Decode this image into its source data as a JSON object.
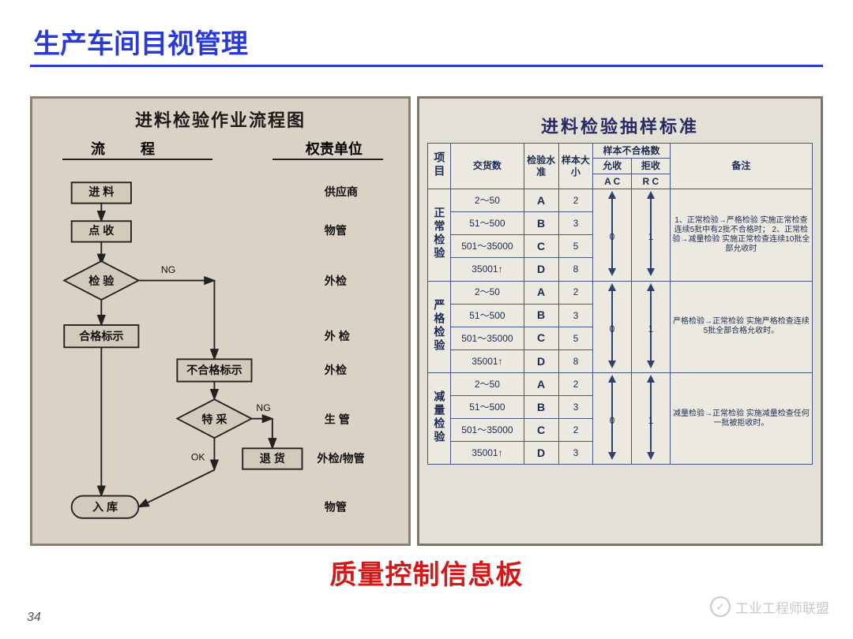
{
  "slide": {
    "title": "生产车间目视管理",
    "caption": "质量控制信息板",
    "page_number": "34",
    "watermark": "工业工程师联盟",
    "colors": {
      "title": "#2a3ad4",
      "caption": "#d21919",
      "tbl_border": "#4a5482",
      "left_bg": "#d9d2c5",
      "right_bg": "#e3e0d7"
    }
  },
  "flowchart": {
    "title": "进料检验作业流程图",
    "col1": "流  程",
    "col2": "权责单位",
    "nodes": {
      "n1": "进 料",
      "n2": "点 收",
      "n3": "检 验",
      "n4": "合格标示",
      "n5": "不合格标示",
      "n6": "特 采",
      "n7": "退 货",
      "n8": "入 库"
    },
    "edge_labels": {
      "ng1": "NG",
      "ng2": "NG",
      "ok": "OK"
    },
    "resp": [
      "供应商",
      "物管",
      "外检",
      "外 检",
      "外检",
      "生 管",
      "外检/物管",
      "物管"
    ]
  },
  "sampling": {
    "title": "进料检验抽样标准",
    "head": {
      "proj": "项目",
      "lot": "交货数",
      "aql": "检验水准",
      "size": "样本大小",
      "defects": "样本不合格数",
      "ac": "允收",
      "re": "拒收",
      "ac2": "A C",
      "re2": "R C",
      "remark": "备注"
    },
    "groups": [
      {
        "name": "正常检验",
        "rows": [
          {
            "lot": "2～50",
            "aql": "A",
            "size": "2"
          },
          {
            "lot": "51～500",
            "aql": "B",
            "size": "3"
          },
          {
            "lot": "501～35000",
            "aql": "C",
            "size": "5"
          },
          {
            "lot": "35001↑",
            "aql": "D",
            "size": "8"
          }
        ],
        "ac_center": "0",
        "re_center": "1",
        "remark": "1、正常检验→严格检验 实施正常检查连续5批中有2批不合格时；\n2、正常检验→减量检验 实施正常检查连续10批全部允收时"
      },
      {
        "name": "严格检验",
        "rows": [
          {
            "lot": "2～50",
            "aql": "A",
            "size": "2"
          },
          {
            "lot": "51～500",
            "aql": "B",
            "size": "3"
          },
          {
            "lot": "501～35000",
            "aql": "C",
            "size": "5"
          },
          {
            "lot": "35001↑",
            "aql": "D",
            "size": "8"
          }
        ],
        "ac_center": "0",
        "re_center": "1",
        "remark": "严格检验→正常检验 实施严格检查连续5批全部合格允收时。"
      },
      {
        "name": "减量检验",
        "rows": [
          {
            "lot": "2～50",
            "aql": "A",
            "size": "2"
          },
          {
            "lot": "51～500",
            "aql": "B",
            "size": "3"
          },
          {
            "lot": "501～35000",
            "aql": "C",
            "size": "2"
          },
          {
            "lot": "35001↑",
            "aql": "D",
            "size": "3"
          }
        ],
        "ac_center": "0",
        "re_center": "1",
        "remark": "减量检验→正常检验 实施减量检查任何一批被拒收时。"
      }
    ]
  }
}
